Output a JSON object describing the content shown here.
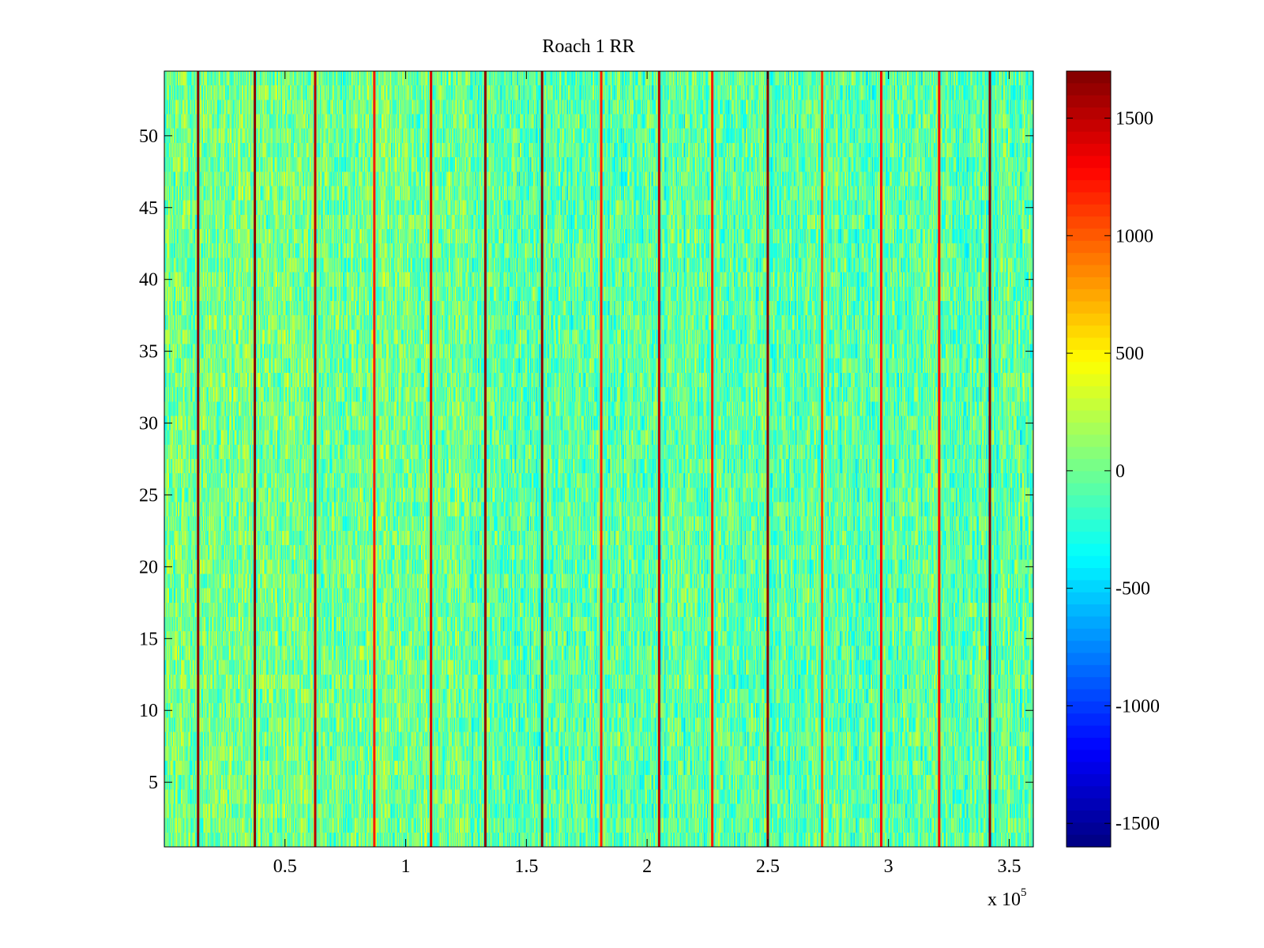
{
  "chart_data": {
    "type": "heatmap",
    "title": "Roach 1 RR",
    "xlabel": "",
    "ylabel": "",
    "x_multiplier_label": "x 10",
    "x_multiplier_exponent": "5",
    "xlim": [
      0,
      360000
    ],
    "ylim": [
      0.5,
      54.5
    ],
    "x_ticks": [
      {
        "value": 50000,
        "label": "0.5"
      },
      {
        "value": 100000,
        "label": "1"
      },
      {
        "value": 150000,
        "label": "1.5"
      },
      {
        "value": 200000,
        "label": "2"
      },
      {
        "value": 250000,
        "label": "2.5"
      },
      {
        "value": 300000,
        "label": "3"
      },
      {
        "value": 350000,
        "label": "3.5"
      }
    ],
    "y_ticks": [
      {
        "value": 5,
        "label": "5"
      },
      {
        "value": 10,
        "label": "10"
      },
      {
        "value": 15,
        "label": "15"
      },
      {
        "value": 20,
        "label": "20"
      },
      {
        "value": 25,
        "label": "25"
      },
      {
        "value": 30,
        "label": "30"
      },
      {
        "value": 35,
        "label": "35"
      },
      {
        "value": 40,
        "label": "40"
      },
      {
        "value": 45,
        "label": "45"
      },
      {
        "value": 50,
        "label": "50"
      }
    ],
    "colorbar": {
      "colormap": "jet",
      "clim": [
        -1600,
        1700
      ],
      "ticks": [
        {
          "value": 1500,
          "label": "1500"
        },
        {
          "value": 1000,
          "label": "1000"
        },
        {
          "value": 500,
          "label": "500"
        },
        {
          "value": 0,
          "label": "0"
        },
        {
          "value": -500,
          "label": "-500"
        },
        {
          "value": -1000,
          "label": "-1000"
        },
        {
          "value": -1500,
          "label": "-1500"
        }
      ]
    },
    "rows": 54,
    "background_value_range": [
      -450,
      350
    ],
    "strong_columns": [
      {
        "x": 14000,
        "value": 1650
      },
      {
        "x": 37500,
        "value": 1650
      },
      {
        "x": 62500,
        "value": 1500
      },
      {
        "x": 87000,
        "value": 1200
      },
      {
        "x": 110500,
        "value": 1400
      },
      {
        "x": 133000,
        "value": 1650
      },
      {
        "x": 156500,
        "value": 1650
      },
      {
        "x": 181000,
        "value": 1200
      },
      {
        "x": 205000,
        "value": 1500
      },
      {
        "x": 227000,
        "value": 1200
      },
      {
        "x": 250000,
        "value": 1650
      },
      {
        "x": 272500,
        "value": 1100
      },
      {
        "x": 297000,
        "value": 1300
      },
      {
        "x": 321000,
        "value": 1300
      },
      {
        "x": 342000,
        "value": 1650
      }
    ],
    "grid": false
  }
}
